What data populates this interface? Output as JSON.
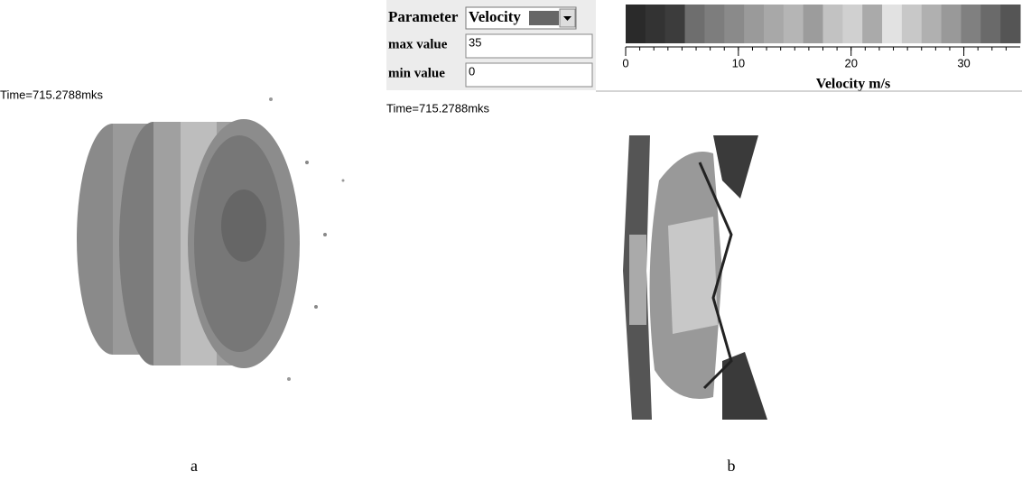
{
  "panel_a": {
    "time_label": "Time=715.2788mks",
    "caption": "a"
  },
  "panel_b": {
    "parameter_label": "Parameter",
    "parameter_value": "Velocity",
    "max_label": "max value",
    "max_value": 35,
    "min_label": "min value",
    "min_value": 0,
    "colorbar": {
      "ticks": [
        0,
        10,
        20,
        30
      ],
      "label": "Velocity m/s"
    },
    "time_label": "Time=715.2788mks",
    "caption": "b"
  }
}
